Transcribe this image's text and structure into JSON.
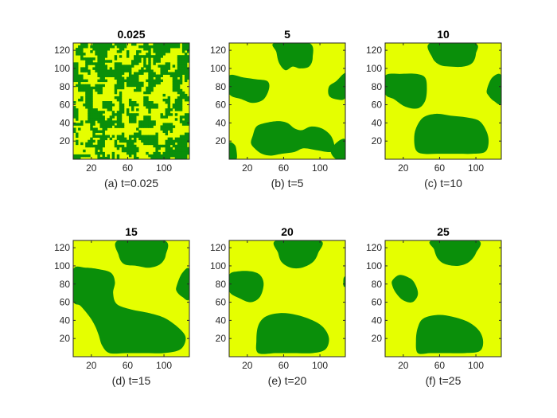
{
  "figure": {
    "background": "#ffffff",
    "colors": {
      "phase_a": "#E5FF00",
      "phase_b": "#0A8F0A",
      "axis": "#262626"
    }
  },
  "chart_data": [
    {
      "type": "heatmap",
      "title": "0.025",
      "caption": "(a) t=0.025",
      "xlim": [
        0,
        128
      ],
      "ylim": [
        0,
        128
      ],
      "xticks": [
        "20",
        "60",
        "100"
      ],
      "yticks": [
        "20",
        "40",
        "60",
        "80",
        "100",
        "120"
      ],
      "pattern": "fine-noise",
      "green_blobs": [],
      "green_fraction": 0.5
    },
    {
      "type": "heatmap",
      "title": "5",
      "caption": "(b) t=5",
      "xlim": [
        0,
        128
      ],
      "ylim": [
        0,
        128
      ],
      "xticks": [
        "20",
        "60",
        "100"
      ],
      "yticks": [
        "20",
        "40",
        "60",
        "80",
        "100",
        "120"
      ],
      "pattern": "blobs",
      "green_blobs": [
        [
          [
            50,
            128
          ],
          [
            88,
            128
          ],
          [
            92,
            112
          ],
          [
            88,
            102
          ],
          [
            78,
            100
          ],
          [
            70,
            102
          ],
          [
            62,
            98
          ],
          [
            55,
            106
          ],
          [
            52,
            118
          ]
        ],
        [
          [
            0,
            92
          ],
          [
            16,
            90
          ],
          [
            30,
            88
          ],
          [
            42,
            86
          ],
          [
            44,
            78
          ],
          [
            38,
            66
          ],
          [
            26,
            62
          ],
          [
            14,
            66
          ],
          [
            0,
            72
          ]
        ],
        [
          [
            110,
            80
          ],
          [
            118,
            86
          ],
          [
            126,
            94
          ],
          [
            128,
            92
          ],
          [
            128,
            68
          ],
          [
            118,
            66
          ],
          [
            110,
            70
          ]
        ],
        [
          [
            26,
            26
          ],
          [
            30,
            36
          ],
          [
            40,
            40
          ],
          [
            54,
            42
          ],
          [
            64,
            40
          ],
          [
            72,
            34
          ],
          [
            80,
            32
          ],
          [
            90,
            36
          ],
          [
            102,
            34
          ],
          [
            112,
            26
          ],
          [
            116,
            14
          ],
          [
            112,
            8
          ],
          [
            96,
            10
          ],
          [
            82,
            12
          ],
          [
            72,
            8
          ],
          [
            58,
            6
          ],
          [
            46,
            4
          ],
          [
            36,
            6
          ],
          [
            28,
            12
          ],
          [
            24,
            18
          ]
        ],
        [
          [
            0,
            0
          ],
          [
            8,
            0
          ],
          [
            8,
            10
          ],
          [
            6,
            16
          ],
          [
            0,
            18
          ]
        ],
        [
          [
            118,
            0
          ],
          [
            128,
            0
          ],
          [
            128,
            20
          ],
          [
            124,
            22
          ],
          [
            116,
            16
          ],
          [
            112,
            8
          ]
        ]
      ]
    },
    {
      "type": "heatmap",
      "title": "10",
      "caption": "(c) t=10",
      "xlim": [
        0,
        128
      ],
      "ylim": [
        0,
        128
      ],
      "xticks": [
        "20",
        "60",
        "100"
      ],
      "yticks": [
        "20",
        "40",
        "60",
        "80",
        "100",
        "120"
      ],
      "pattern": "blobs",
      "green_blobs": [
        [
          [
            50,
            128
          ],
          [
            98,
            128
          ],
          [
            100,
            116
          ],
          [
            96,
            106
          ],
          [
            86,
            102
          ],
          [
            72,
            102
          ],
          [
            60,
            104
          ],
          [
            52,
            112
          ]
        ],
        [
          [
            0,
            92
          ],
          [
            18,
            94
          ],
          [
            34,
            94
          ],
          [
            44,
            90
          ],
          [
            46,
            78
          ],
          [
            44,
            64
          ],
          [
            36,
            56
          ],
          [
            22,
            58
          ],
          [
            10,
            66
          ],
          [
            0,
            72
          ]
        ],
        [
          [
            112,
            76
          ],
          [
            118,
            90
          ],
          [
            128,
            92
          ],
          [
            128,
            62
          ],
          [
            120,
            64
          ],
          [
            114,
            70
          ]
        ],
        [
          [
            34,
            10
          ],
          [
            32,
            22
          ],
          [
            34,
            34
          ],
          [
            42,
            46
          ],
          [
            56,
            50
          ],
          [
            72,
            48
          ],
          [
            90,
            46
          ],
          [
            104,
            42
          ],
          [
            112,
            30
          ],
          [
            114,
            18
          ],
          [
            110,
            8
          ],
          [
            96,
            6
          ],
          [
            80,
            6
          ],
          [
            60,
            6
          ],
          [
            42,
            6
          ]
        ]
      ]
    },
    {
      "type": "heatmap",
      "title": "15",
      "caption": "(d) t=15",
      "xlim": [
        0,
        128
      ],
      "ylim": [
        0,
        128
      ],
      "xticks": [
        "20",
        "60",
        "100"
      ],
      "yticks": [
        "20",
        "40",
        "60",
        "80",
        "100",
        "120"
      ],
      "pattern": "blobs",
      "green_blobs": [
        [
          [
            50,
            128
          ],
          [
            100,
            128
          ],
          [
            102,
            112
          ],
          [
            96,
            102
          ],
          [
            84,
            98
          ],
          [
            70,
            100
          ],
          [
            56,
            102
          ],
          [
            50,
            112
          ]
        ],
        [
          [
            0,
            96
          ],
          [
            14,
            98
          ],
          [
            30,
            96
          ],
          [
            42,
            92
          ],
          [
            46,
            82
          ],
          [
            44,
            70
          ],
          [
            48,
            58
          ],
          [
            64,
            52
          ],
          [
            84,
            48
          ],
          [
            102,
            42
          ],
          [
            118,
            30
          ],
          [
            124,
            20
          ],
          [
            118,
            8
          ],
          [
            100,
            4
          ],
          [
            80,
            4
          ],
          [
            58,
            4
          ],
          [
            40,
            4
          ],
          [
            32,
            12
          ],
          [
            28,
            24
          ],
          [
            24,
            34
          ],
          [
            18,
            44
          ],
          [
            8,
            56
          ],
          [
            0,
            62
          ]
        ],
        [
          [
            114,
            78
          ],
          [
            120,
            92
          ],
          [
            128,
            96
          ],
          [
            128,
            64
          ],
          [
            120,
            66
          ],
          [
            114,
            72
          ]
        ]
      ]
    },
    {
      "type": "heatmap",
      "title": "20",
      "caption": "(e) t=20",
      "xlim": [
        0,
        128
      ],
      "ylim": [
        0,
        128
      ],
      "xticks": [
        "20",
        "60",
        "100"
      ],
      "yticks": [
        "20",
        "40",
        "60",
        "80",
        "100",
        "120"
      ],
      "pattern": "blobs",
      "green_blobs": [
        [
          [
            52,
            128
          ],
          [
            100,
            128
          ],
          [
            98,
            114
          ],
          [
            92,
            104
          ],
          [
            80,
            98
          ],
          [
            68,
            98
          ],
          [
            58,
            104
          ],
          [
            54,
            114
          ]
        ],
        [
          [
            0,
            90
          ],
          [
            10,
            94
          ],
          [
            24,
            94
          ],
          [
            34,
            90
          ],
          [
            38,
            80
          ],
          [
            34,
            66
          ],
          [
            24,
            60
          ],
          [
            12,
            64
          ],
          [
            0,
            72
          ]
        ],
        [
          [
            126,
            78
          ],
          [
            128,
            78
          ],
          [
            128,
            88
          ],
          [
            126,
            86
          ]
        ],
        [
          [
            32,
            4
          ],
          [
            30,
            18
          ],
          [
            32,
            34
          ],
          [
            40,
            44
          ],
          [
            56,
            48
          ],
          [
            74,
            46
          ],
          [
            92,
            40
          ],
          [
            104,
            32
          ],
          [
            110,
            20
          ],
          [
            106,
            8
          ],
          [
            92,
            4
          ],
          [
            72,
            4
          ],
          [
            52,
            4
          ]
        ]
      ]
    },
    {
      "type": "heatmap",
      "title": "25",
      "caption": "(f) t=25",
      "xlim": [
        0,
        128
      ],
      "ylim": [
        0,
        128
      ],
      "xticks": [
        "20",
        "60",
        "100"
      ],
      "yticks": [
        "20",
        "40",
        "60",
        "80",
        "100",
        "120"
      ],
      "pattern": "blobs",
      "green_blobs": [
        [
          [
            52,
            128
          ],
          [
            102,
            128
          ],
          [
            100,
            114
          ],
          [
            92,
            104
          ],
          [
            80,
            100
          ],
          [
            66,
            102
          ],
          [
            58,
            108
          ],
          [
            54,
            118
          ]
        ],
        [
          [
            8,
            84
          ],
          [
            16,
            90
          ],
          [
            28,
            86
          ],
          [
            34,
            78
          ],
          [
            36,
            68
          ],
          [
            30,
            60
          ],
          [
            20,
            62
          ],
          [
            12,
            70
          ],
          [
            8,
            78
          ]
        ],
        [
          [
            36,
            4
          ],
          [
            34,
            18
          ],
          [
            36,
            32
          ],
          [
            42,
            42
          ],
          [
            58,
            46
          ],
          [
            74,
            44
          ],
          [
            92,
            38
          ],
          [
            104,
            28
          ],
          [
            108,
            16
          ],
          [
            104,
            6
          ],
          [
            88,
            4
          ],
          [
            68,
            4
          ],
          [
            50,
            4
          ]
        ]
      ]
    }
  ]
}
